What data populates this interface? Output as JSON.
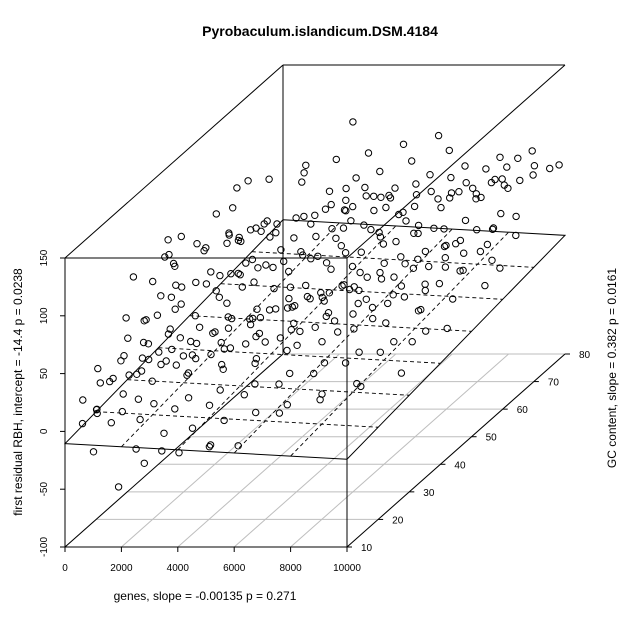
{
  "chart_data": {
    "type": "scatter3d",
    "title": "Pyrobaculum.islandicum.DSM.4184",
    "xlabel": "genes, slope =  -0.00135 p =  0.271",
    "ylabel": "GC content, slope =  0.382 p =  0.0161",
    "zlabel": "first residual RBH, intercept =  -14.4 p =  0.0238",
    "xlim": [
      0,
      10000
    ],
    "ylim": [
      10,
      80
    ],
    "zlim": [
      -100,
      150
    ],
    "x_ticks": [
      "0",
      "2000",
      "4000",
      "6000",
      "8000",
      "10000"
    ],
    "y_ticks": [
      "10",
      "20",
      "30",
      "40",
      "50",
      "60",
      "70",
      "80"
    ],
    "z_ticks": [
      "-100",
      "-50",
      "0",
      "50",
      "100",
      "150"
    ],
    "regression_plane": {
      "intercept": -14.4,
      "slope_x": -0.00135,
      "slope_y": 0.382
    },
    "points": [
      [
        8000,
        30,
        220
      ],
      [
        9200,
        23,
        180
      ],
      [
        8200,
        26,
        172
      ],
      [
        9400,
        24,
        170
      ],
      [
        5500,
        26,
        130
      ],
      [
        6400,
        14,
        132
      ],
      [
        2800,
        22,
        140
      ],
      [
        2000,
        25,
        130
      ],
      [
        3400,
        38,
        150
      ],
      [
        1100,
        22,
        105
      ],
      [
        1700,
        28,
        110
      ],
      [
        3600,
        37,
        110
      ],
      [
        3500,
        34,
        108
      ],
      [
        4200,
        48,
        125
      ],
      [
        4300,
        28,
        82
      ],
      [
        4300,
        56,
        98
      ],
      [
        5900,
        46,
        90
      ],
      [
        5100,
        54,
        95
      ],
      [
        4600,
        52,
        92
      ],
      [
        6300,
        57,
        92
      ],
      [
        7900,
        52,
        78
      ],
      [
        7100,
        47,
        80
      ],
      [
        8800,
        52,
        75
      ],
      [
        7900,
        62,
        78
      ],
      [
        8900,
        63,
        76
      ],
      [
        9100,
        68,
        80
      ],
      [
        8400,
        66,
        72
      ],
      [
        6500,
        64,
        76
      ],
      [
        5100,
        45,
        68
      ],
      [
        5600,
        48,
        70
      ],
      [
        6500,
        52,
        72
      ],
      [
        7400,
        55,
        64
      ],
      [
        6800,
        38,
        60
      ],
      [
        5900,
        42,
        64
      ],
      [
        4900,
        38,
        58
      ],
      [
        4000,
        44,
        66
      ],
      [
        3200,
        33,
        56
      ],
      [
        2600,
        36,
        54
      ],
      [
        2300,
        31,
        50
      ],
      [
        1900,
        26,
        46
      ],
      [
        1700,
        30,
        58
      ],
      [
        1400,
        27,
        60
      ],
      [
        1100,
        18,
        42
      ],
      [
        900,
        22,
        52
      ],
      [
        2900,
        26,
        38
      ],
      [
        3900,
        34,
        40
      ],
      [
        4600,
        36,
        44
      ],
      [
        5600,
        38,
        48
      ],
      [
        6600,
        45,
        54
      ],
      [
        7600,
        49,
        58
      ],
      [
        8600,
        54,
        55
      ],
      [
        9300,
        58,
        60
      ],
      [
        9600,
        63,
        62
      ],
      [
        9500,
        70,
        74
      ],
      [
        8400,
        72,
        70
      ],
      [
        7300,
        68,
        68
      ],
      [
        6200,
        61,
        66
      ],
      [
        5300,
        58,
        64
      ],
      [
        4500,
        55,
        68
      ],
      [
        3700,
        50,
        72
      ],
      [
        3000,
        43,
        70
      ],
      [
        2400,
        38,
        68
      ],
      [
        1600,
        33,
        70
      ],
      [
        2900,
        40,
        64
      ],
      [
        4100,
        40,
        52
      ],
      [
        5000,
        42,
        50
      ],
      [
        6000,
        48,
        52
      ],
      [
        6900,
        50,
        50
      ],
      [
        7700,
        56,
        46
      ],
      [
        8500,
        60,
        46
      ],
      [
        9200,
        64,
        46
      ],
      [
        8100,
        59,
        44
      ],
      [
        7200,
        54,
        40
      ],
      [
        6300,
        50,
        38
      ],
      [
        5400,
        46,
        34
      ],
      [
        4500,
        43,
        30
      ],
      [
        3600,
        37,
        28
      ],
      [
        2700,
        33,
        30
      ],
      [
        1800,
        28,
        28
      ],
      [
        1200,
        24,
        30
      ],
      [
        600,
        20,
        22
      ],
      [
        1000,
        24,
        16
      ],
      [
        1600,
        28,
        18
      ],
      [
        2200,
        31,
        16
      ],
      [
        3000,
        34,
        14
      ],
      [
        3800,
        38,
        18
      ],
      [
        4600,
        41,
        14
      ],
      [
        5400,
        45,
        16
      ],
      [
        6200,
        48,
        20
      ],
      [
        7000,
        52,
        18
      ],
      [
        7800,
        55,
        20
      ],
      [
        8600,
        59,
        22
      ],
      [
        9400,
        62,
        24
      ],
      [
        9800,
        66,
        36
      ],
      [
        8900,
        67,
        40
      ],
      [
        8000,
        63,
        36
      ],
      [
        7100,
        59,
        32
      ],
      [
        6200,
        55,
        30
      ],
      [
        5300,
        51,
        28
      ],
      [
        4400,
        48,
        26
      ],
      [
        3500,
        44,
        24
      ],
      [
        2600,
        40,
        26
      ],
      [
        1900,
        36,
        28
      ],
      [
        1300,
        32,
        36
      ],
      [
        800,
        28,
        34
      ],
      [
        700,
        14,
        6
      ],
      [
        1500,
        20,
        4
      ],
      [
        2500,
        27,
        10
      ],
      [
        3400,
        30,
        6
      ],
      [
        4200,
        33,
        4
      ],
      [
        5000,
        36,
        8
      ],
      [
        5800,
        40,
        6
      ],
      [
        6600,
        43,
        10
      ],
      [
        7400,
        46,
        8
      ],
      [
        8200,
        50,
        10
      ],
      [
        9000,
        53,
        12
      ],
      [
        9700,
        57,
        14
      ],
      [
        9900,
        60,
        22
      ],
      [
        9000,
        42,
        28
      ],
      [
        7600,
        40,
        26
      ],
      [
        6800,
        36,
        24
      ],
      [
        5800,
        32,
        22
      ],
      [
        4800,
        28,
        20
      ],
      [
        3900,
        25,
        22
      ],
      [
        3000,
        22,
        20
      ],
      [
        2100,
        19,
        22
      ],
      [
        1400,
        16,
        18
      ],
      [
        800,
        13,
        12
      ],
      [
        400,
        12,
        2
      ],
      [
        1200,
        14,
        -2
      ],
      [
        2000,
        16,
        -4
      ],
      [
        2900,
        19,
        -2
      ],
      [
        3800,
        22,
        -6
      ],
      [
        4700,
        25,
        -4
      ],
      [
        5600,
        28,
        -2
      ],
      [
        6500,
        31,
        0
      ],
      [
        7300,
        34,
        2
      ],
      [
        8200,
        37,
        4
      ],
      [
        9000,
        40,
        6
      ],
      [
        9800,
        44,
        8
      ],
      [
        9700,
        50,
        44
      ],
      [
        8800,
        46,
        36
      ],
      [
        7800,
        43,
        32
      ],
      [
        6900,
        40,
        30
      ],
      [
        6000,
        36,
        28
      ],
      [
        5100,
        33,
        26
      ],
      [
        4200,
        30,
        28
      ],
      [
        3300,
        27,
        26
      ],
      [
        2400,
        24,
        24
      ],
      [
        1500,
        21,
        26
      ],
      [
        700,
        18,
        24
      ],
      [
        500,
        16,
        40
      ],
      [
        1100,
        19,
        44
      ],
      [
        2000,
        22,
        40
      ],
      [
        2800,
        25,
        42
      ],
      [
        3700,
        29,
        44
      ],
      [
        4500,
        32,
        46
      ],
      [
        5300,
        35,
        48
      ],
      [
        6100,
        38,
        46
      ],
      [
        7000,
        41,
        48
      ],
      [
        7800,
        45,
        50
      ],
      [
        8700,
        48,
        52
      ],
      [
        9500,
        52,
        54
      ],
      [
        9900,
        56,
        52
      ],
      [
        9300,
        46,
        42
      ],
      [
        8500,
        42,
        40
      ],
      [
        7700,
        39,
        38
      ],
      [
        6800,
        35,
        36
      ],
      [
        5900,
        32,
        34
      ],
      [
        5000,
        29,
        32
      ],
      [
        4100,
        26,
        34
      ],
      [
        3200,
        23,
        32
      ],
      [
        2300,
        20,
        34
      ],
      [
        1500,
        17,
        32
      ],
      [
        700,
        15,
        30
      ],
      [
        300,
        13,
        20
      ],
      [
        900,
        12,
        14
      ],
      [
        1700,
        13,
        10
      ],
      [
        2600,
        15,
        12
      ],
      [
        3500,
        18,
        10
      ],
      [
        4400,
        20,
        12
      ],
      [
        5300,
        23,
        10
      ],
      [
        6200,
        26,
        12
      ],
      [
        7100,
        29,
        14
      ],
      [
        8000,
        32,
        16
      ],
      [
        8900,
        35,
        18
      ],
      [
        9700,
        38,
        20
      ],
      [
        2300,
        12,
        -20
      ],
      [
        3100,
        13,
        -24
      ],
      [
        2700,
        11,
        -30
      ],
      [
        3600,
        14,
        -28
      ],
      [
        4500,
        16,
        -26
      ],
      [
        5700,
        14,
        -22
      ],
      [
        4900,
        12,
        -18
      ],
      [
        1900,
        10,
        -48
      ],
      [
        900,
        11,
        -20
      ],
      [
        6500,
        20,
        -8
      ],
      [
        7500,
        24,
        -6
      ],
      [
        8500,
        28,
        -4
      ],
      [
        9500,
        32,
        -2
      ],
      [
        4300,
        36,
        120
      ],
      [
        3900,
        52,
        130
      ],
      [
        2800,
        46,
        90
      ],
      [
        2100,
        43,
        84
      ],
      [
        5200,
        64,
        96
      ],
      [
        6000,
        67,
        98
      ],
      [
        7000,
        70,
        100
      ],
      [
        4800,
        60,
        100
      ],
      [
        3200,
        45,
        96
      ],
      [
        2500,
        40,
        100
      ],
      [
        4400,
        24,
        160
      ],
      [
        3600,
        26,
        150
      ],
      [
        5600,
        36,
        124
      ],
      [
        6600,
        40,
        120
      ],
      [
        6000,
        32,
        100
      ],
      [
        7200,
        44,
        110
      ],
      [
        8200,
        48,
        104
      ],
      [
        9000,
        55,
        100
      ],
      [
        9600,
        60,
        96
      ],
      [
        9800,
        72,
        82
      ],
      [
        9900,
        76,
        70
      ],
      [
        8600,
        74,
        76
      ],
      [
        7600,
        70,
        72
      ],
      [
        6800,
        66,
        74
      ],
      [
        5800,
        62,
        78
      ],
      [
        4900,
        58,
        80
      ],
      [
        4000,
        54,
        82
      ],
      [
        3100,
        50,
        84
      ],
      [
        2200,
        46,
        82
      ],
      [
        1400,
        42,
        80
      ],
      [
        800,
        38,
        76
      ],
      [
        1200,
        34,
        88
      ],
      [
        1900,
        38,
        92
      ],
      [
        2700,
        42,
        88
      ],
      [
        3500,
        46,
        86
      ],
      [
        4300,
        50,
        84
      ],
      [
        5100,
        54,
        86
      ],
      [
        5900,
        58,
        88
      ],
      [
        6700,
        62,
        90
      ],
      [
        7500,
        66,
        86
      ],
      [
        8300,
        70,
        84
      ],
      [
        9100,
        73,
        86
      ],
      [
        6300,
        56,
        84
      ],
      [
        5500,
        52,
        82
      ],
      [
        4700,
        48,
        78
      ],
      [
        3900,
        44,
        76
      ],
      [
        3100,
        40,
        74
      ],
      [
        2300,
        36,
        76
      ],
      [
        1500,
        32,
        74
      ],
      [
        900,
        30,
        82
      ],
      [
        3800,
        28,
        56
      ],
      [
        4600,
        30,
        58
      ],
      [
        5400,
        33,
        60
      ],
      [
        6200,
        36,
        58
      ],
      [
        7000,
        38,
        56
      ],
      [
        7800,
        41,
        58
      ],
      [
        8600,
        44,
        60
      ],
      [
        9400,
        47,
        62
      ],
      [
        8900,
        58,
        68
      ],
      [
        8000,
        56,
        66
      ],
      [
        7100,
        52,
        64
      ],
      [
        6200,
        49,
        62
      ],
      [
        5300,
        46,
        60
      ],
      [
        4400,
        42,
        62
      ],
      [
        3500,
        39,
        60
      ],
      [
        2600,
        35,
        62
      ],
      [
        1800,
        31,
        60
      ],
      [
        1000,
        27,
        56
      ],
      [
        1300,
        29,
        72
      ],
      [
        2100,
        33,
        74
      ],
      [
        2900,
        37,
        72
      ],
      [
        3700,
        41,
        70
      ],
      [
        4500,
        45,
        72
      ],
      [
        5300,
        49,
        74
      ],
      [
        6100,
        53,
        72
      ],
      [
        6900,
        57,
        70
      ],
      [
        7700,
        61,
        72
      ],
      [
        8500,
        65,
        70
      ],
      [
        9300,
        68,
        72
      ],
      [
        6500,
        44,
        44
      ],
      [
        5700,
        41,
        42
      ],
      [
        4800,
        38,
        40
      ],
      [
        3900,
        35,
        38
      ],
      [
        3000,
        31,
        36
      ],
      [
        2100,
        28,
        38
      ],
      [
        1300,
        25,
        40
      ],
      [
        9100,
        61,
        34
      ],
      [
        8300,
        57,
        30
      ],
      [
        7400,
        51,
        28
      ],
      [
        6600,
        47,
        26
      ],
      [
        5700,
        43,
        24
      ],
      [
        4800,
        40,
        22
      ],
      [
        3900,
        36,
        20
      ],
      [
        3000,
        33,
        22
      ],
      [
        2100,
        29,
        20
      ],
      [
        1200,
        26,
        24
      ],
      [
        9500,
        74,
        90
      ],
      [
        8800,
        70,
        94
      ],
      [
        8000,
        66,
        96
      ],
      [
        7200,
        62,
        98
      ],
      [
        6400,
        58,
        96
      ],
      [
        5600,
        56,
        94
      ],
      [
        4800,
        52,
        96
      ],
      [
        4000,
        48,
        94
      ],
      [
        3200,
        44,
        92
      ],
      [
        2400,
        41,
        96
      ],
      [
        1700,
        37,
        98
      ],
      [
        1000,
        33,
        96
      ],
      [
        9900,
        79,
        66
      ],
      [
        9200,
        77,
        62
      ],
      [
        8400,
        75,
        58
      ],
      [
        7500,
        73,
        60
      ],
      [
        6600,
        70,
        58
      ],
      [
        5800,
        66,
        56
      ],
      [
        9700,
        67,
        50
      ],
      [
        7000,
        60,
        52
      ],
      [
        6100,
        57,
        50
      ],
      [
        5200,
        53,
        52
      ],
      [
        4300,
        50,
        54
      ],
      [
        3400,
        46,
        56
      ],
      [
        2500,
        43,
        58
      ],
      [
        1700,
        40,
        56
      ],
      [
        900,
        36,
        54
      ],
      [
        8800,
        24,
        8
      ],
      [
        7900,
        21,
        6
      ],
      [
        7000,
        18,
        4
      ],
      [
        6100,
        16,
        2
      ],
      [
        5200,
        14,
        0
      ],
      [
        4300,
        12,
        -2
      ],
      [
        3400,
        11,
        -4
      ],
      [
        600,
        30,
        48
      ],
      [
        400,
        26,
        60
      ],
      [
        1900,
        48,
        120
      ],
      [
        2600,
        52,
        118
      ],
      [
        3400,
        56,
        114
      ],
      [
        4100,
        60,
        116
      ],
      [
        4800,
        64,
        112
      ],
      [
        5600,
        68,
        110
      ],
      [
        6400,
        72,
        108
      ]
    ]
  }
}
